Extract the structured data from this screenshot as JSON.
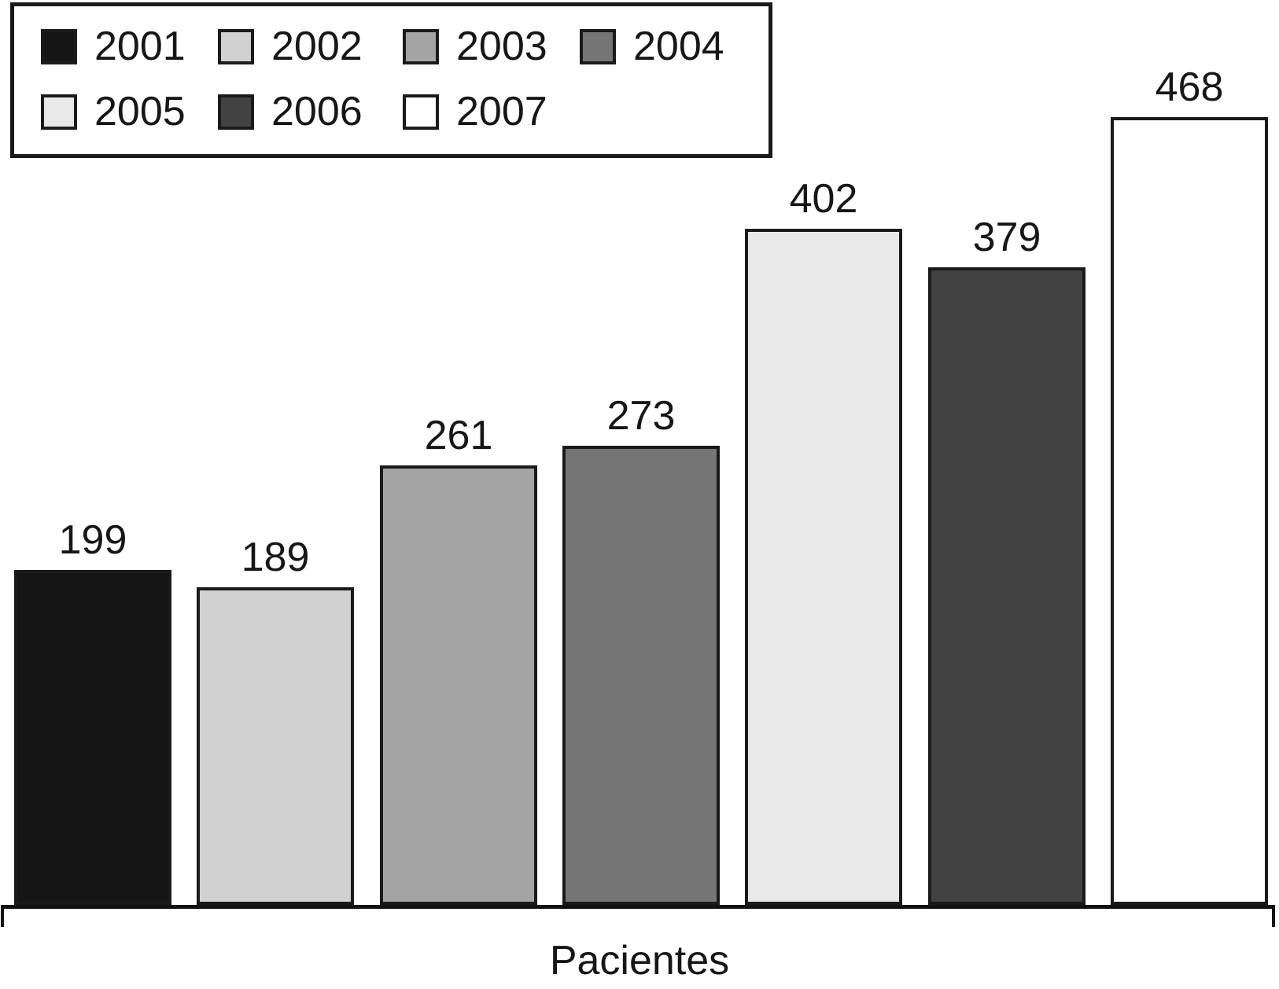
{
  "chart_data": {
    "type": "bar",
    "title": "",
    "xlabel": "Pacientes",
    "ylabel": "",
    "categories": [
      "2001",
      "2002",
      "2003",
      "2004",
      "2005",
      "2006",
      "2007"
    ],
    "values": [
      199,
      189,
      261,
      273,
      402,
      379,
      468
    ],
    "colors": [
      "#151515",
      "#d1d1d1",
      "#a4a4a4",
      "#757575",
      "#e8e8e8",
      "#424242",
      "#ffffff"
    ],
    "bar_border_color": "#1a1a1a",
    "axis_color": "#111111",
    "ylim": [
      0,
      540
    ],
    "grid": false,
    "legend_position": "top-left"
  }
}
